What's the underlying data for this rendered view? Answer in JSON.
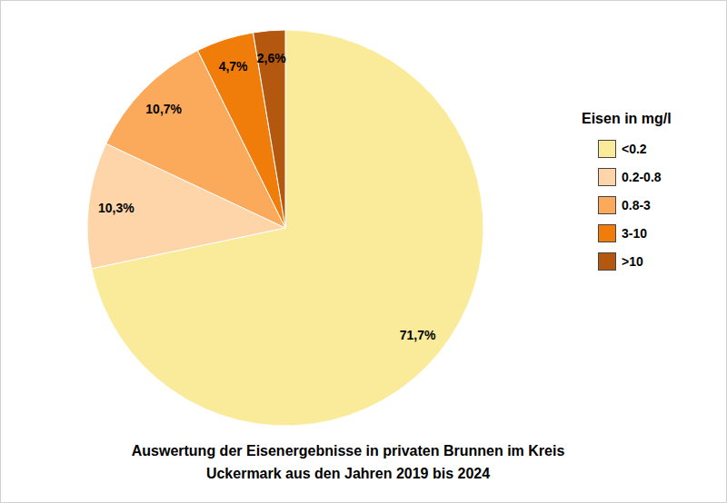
{
  "chart_data": {
    "type": "pie",
    "title": "Auswertung der Eisenergebnisse in privaten Brunnen im Kreis Uckermark aus den Jahren 2019 bis 2024",
    "legend_title": "Eisen in mg/l",
    "categories": [
      "<0.2",
      "0.2-0.8",
      "0.8-3",
      "3-10",
      ">10"
    ],
    "values": [
      71.7,
      10.3,
      10.7,
      4.7,
      2.6
    ],
    "value_labels": [
      "71,7%",
      "10,3%",
      "10,7%",
      "4,7%",
      "2,6%"
    ],
    "colors": [
      "#FAEB9B",
      "#FDD5A8",
      "#FBAA5B",
      "#F07D0A",
      "#B5580F"
    ],
    "data_labels": true,
    "legend": "right"
  }
}
